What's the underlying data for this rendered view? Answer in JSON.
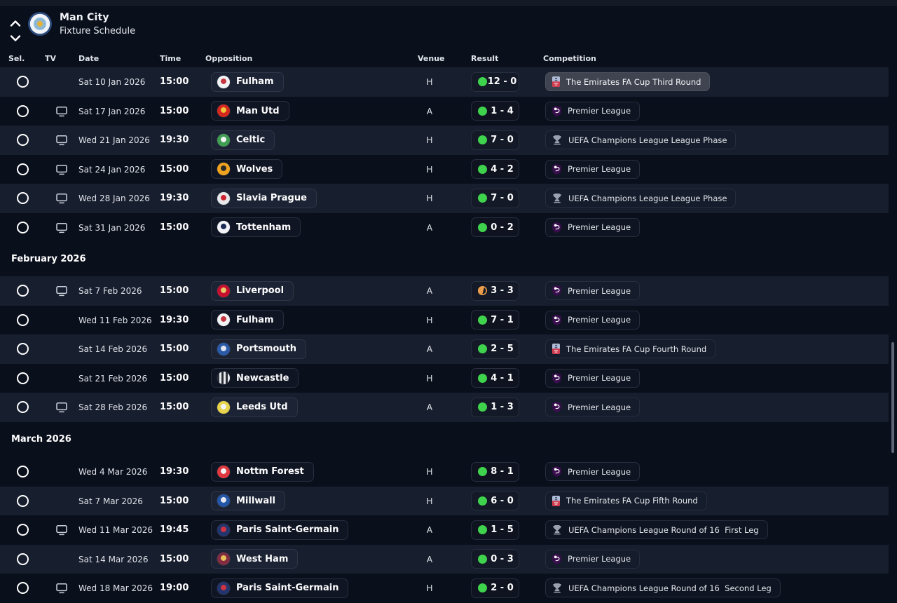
{
  "window": {
    "title": "Man City",
    "subtitle": "Fixture Schedule"
  },
  "columns": {
    "sel": "Sel.",
    "tv": "TV",
    "date": "Date",
    "time": "Time",
    "opposition": "Opposition",
    "venue": "Venue",
    "result": "Result",
    "competition": "Competition"
  },
  "colors": {
    "background": "#0a0f1c",
    "row_highlight": "#171e2e",
    "win_dot": "#3fd24c",
    "draw_dot": "#ec9c4a",
    "premier_league_purple": "#3a0e4e",
    "fa_cup_red": "#d23a4e",
    "ucl_grey": "#99a1af",
    "scrollbar": "#5d6577"
  },
  "badges": {
    "man-city": {
      "bg": "#8ab8d9",
      "accent": "#e3b23c"
    },
    "fulham": {
      "bg": "#f2f3f5",
      "accent": "#c63640"
    },
    "man-utd": {
      "bg": "#d4281e",
      "accent": "#f0c23c"
    },
    "celtic": {
      "bg": "#3f9e52",
      "accent": "#f2f3f5"
    },
    "wolves": {
      "bg": "#f0a31f",
      "accent": "#2a2a2a"
    },
    "slavia-prague": {
      "bg": "#e6e8ea",
      "accent": "#cf2332"
    },
    "tottenham": {
      "bg": "#f2f4f8",
      "accent": "#1b2a54"
    },
    "liverpool": {
      "bg": "#c8102e",
      "accent": "#e8c66a"
    },
    "portsmouth": {
      "bg": "#2a5aa8",
      "accent": "#dfe4ee"
    },
    "newcastle": {
      "bg": "#2b2f38",
      "accent": "#e8eaee",
      "pattern": "stripes"
    },
    "leeds-utd": {
      "bg": "#e8d44c",
      "accent": "#f2f3f5"
    },
    "nottm-forest": {
      "bg": "#e0393f",
      "accent": "#f2f3f5"
    },
    "millwall": {
      "bg": "#2456a8",
      "accent": "#e6e9ef"
    },
    "psg": {
      "bg": "#24356e",
      "accent": "#d0333f"
    },
    "west-ham": {
      "bg": "#822c41",
      "accent": "#e8c05a"
    }
  },
  "sections": [
    {
      "label": "",
      "rows": [
        {
          "tv": false,
          "date": "Sat 10 Jan 2026",
          "time": "15:00",
          "opponent": "Fulham",
          "badge": "fulham",
          "venue": "H",
          "outcome": "win",
          "score": "12 - 0",
          "comp_icon": "fa-cup",
          "competition": "The Emirates FA Cup Third Round",
          "highlighted": true,
          "comp_highlight": true
        },
        {
          "tv": true,
          "date": "Sat 17 Jan 2026",
          "time": "15:00",
          "opponent": "Man Utd",
          "badge": "man-utd",
          "venue": "A",
          "outcome": "win",
          "score": "1 - 4",
          "comp_icon": "premier-league",
          "competition": "Premier League",
          "highlighted": false,
          "comp_highlight": false
        },
        {
          "tv": true,
          "date": "Wed 21 Jan 2026",
          "time": "19:30",
          "opponent": "Celtic",
          "badge": "celtic",
          "venue": "H",
          "outcome": "win",
          "score": "7 - 0",
          "comp_icon": "ucl",
          "competition": "UEFA Champions League League Phase",
          "highlighted": true,
          "comp_highlight": false
        },
        {
          "tv": true,
          "date": "Sat 24 Jan 2026",
          "time": "15:00",
          "opponent": "Wolves",
          "badge": "wolves",
          "venue": "H",
          "outcome": "win",
          "score": "4 - 2",
          "comp_icon": "premier-league",
          "competition": "Premier League",
          "highlighted": false,
          "comp_highlight": false
        },
        {
          "tv": true,
          "date": "Wed 28 Jan 2026",
          "time": "19:30",
          "opponent": "Slavia Prague",
          "badge": "slavia-prague",
          "venue": "H",
          "outcome": "win",
          "score": "7 - 0",
          "comp_icon": "ucl",
          "competition": "UEFA Champions League League Phase",
          "highlighted": true,
          "comp_highlight": false
        },
        {
          "tv": true,
          "date": "Sat 31 Jan 2026",
          "time": "15:00",
          "opponent": "Tottenham",
          "badge": "tottenham",
          "venue": "A",
          "outcome": "win",
          "score": "0 - 2",
          "comp_icon": "premier-league",
          "competition": "Premier League",
          "highlighted": false,
          "comp_highlight": false
        }
      ]
    },
    {
      "label": "February 2026",
      "rows": [
        {
          "tv": true,
          "date": "Sat 7 Feb 2026",
          "time": "15:00",
          "opponent": "Liverpool",
          "badge": "liverpool",
          "venue": "A",
          "outcome": "draw",
          "score": "3 - 3",
          "comp_icon": "premier-league",
          "competition": "Premier League",
          "highlighted": true,
          "comp_highlight": false
        },
        {
          "tv": false,
          "date": "Wed 11 Feb 2026",
          "time": "19:30",
          "opponent": "Fulham",
          "badge": "fulham",
          "venue": "H",
          "outcome": "win",
          "score": "7 - 1",
          "comp_icon": "premier-league",
          "competition": "Premier League",
          "highlighted": false,
          "comp_highlight": false
        },
        {
          "tv": false,
          "date": "Sat 14 Feb 2026",
          "time": "15:00",
          "opponent": "Portsmouth",
          "badge": "portsmouth",
          "venue": "A",
          "outcome": "win",
          "score": "2 - 5",
          "comp_icon": "fa-cup",
          "competition": "The Emirates FA Cup Fourth Round",
          "highlighted": true,
          "comp_highlight": false
        },
        {
          "tv": false,
          "date": "Sat 21 Feb 2026",
          "time": "15:00",
          "opponent": "Newcastle",
          "badge": "newcastle",
          "venue": "H",
          "outcome": "win",
          "score": "4 - 1",
          "comp_icon": "premier-league",
          "competition": "Premier League",
          "highlighted": false,
          "comp_highlight": false
        },
        {
          "tv": true,
          "date": "Sat 28 Feb 2026",
          "time": "15:00",
          "opponent": "Leeds Utd",
          "badge": "leeds-utd",
          "venue": "A",
          "outcome": "win",
          "score": "1 - 3",
          "comp_icon": "premier-league",
          "competition": "Premier League",
          "highlighted": true,
          "comp_highlight": false
        }
      ]
    },
    {
      "label": "March 2026",
      "rows": [
        {
          "tv": false,
          "date": "Wed 4 Mar 2026",
          "time": "19:30",
          "opponent": "Nottm Forest",
          "badge": "nottm-forest",
          "venue": "H",
          "outcome": "win",
          "score": "8 - 1",
          "comp_icon": "premier-league",
          "competition": "Premier League",
          "highlighted": false,
          "comp_highlight": false
        },
        {
          "tv": false,
          "date": "Sat 7 Mar 2026",
          "time": "15:00",
          "opponent": "Millwall",
          "badge": "millwall",
          "venue": "H",
          "outcome": "win",
          "score": "6 - 0",
          "comp_icon": "fa-cup",
          "competition": "The Emirates FA Cup Fifth Round",
          "highlighted": true,
          "comp_highlight": false
        },
        {
          "tv": true,
          "date": "Wed 11 Mar 2026",
          "time": "19:45",
          "opponent": "Paris Saint-Germain",
          "badge": "psg",
          "venue": "A",
          "outcome": "win",
          "score": "1 - 5",
          "comp_icon": "ucl",
          "competition": "UEFA Champions League Round of 16  First Leg",
          "highlighted": false,
          "comp_highlight": false
        },
        {
          "tv": false,
          "date": "Sat 14 Mar 2026",
          "time": "15:00",
          "opponent": "West Ham",
          "badge": "west-ham",
          "venue": "A",
          "outcome": "win",
          "score": "0 - 3",
          "comp_icon": "premier-league",
          "competition": "Premier League",
          "highlighted": true,
          "comp_highlight": false
        },
        {
          "tv": true,
          "date": "Wed 18 Mar 2026",
          "time": "19:00",
          "opponent": "Paris Saint-Germain",
          "badge": "psg",
          "venue": "H",
          "outcome": "win",
          "score": "2 - 0",
          "comp_icon": "ucl",
          "competition": "UEFA Champions League Round of 16  Second Leg",
          "highlighted": false,
          "comp_highlight": false
        }
      ]
    }
  ]
}
